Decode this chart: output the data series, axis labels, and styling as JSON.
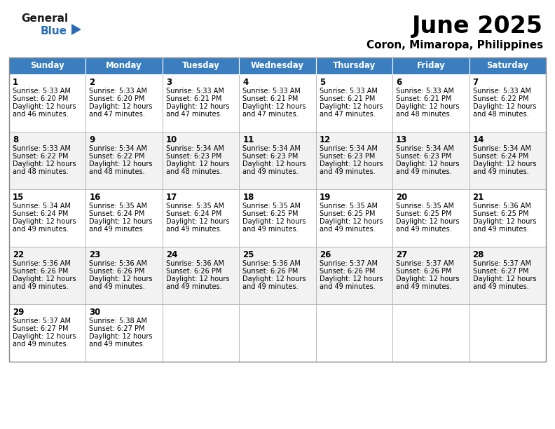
{
  "title": "June 2025",
  "subtitle": "Coron, Mimaropa, Philippines",
  "header_color": "#3a7ebf",
  "header_text_color": "#ffffff",
  "day_names": [
    "Sunday",
    "Monday",
    "Tuesday",
    "Wednesday",
    "Thursday",
    "Friday",
    "Saturday"
  ],
  "bg_color": "#ffffff",
  "grid_color": "#aaaaaa",
  "row_alt_color": "#eeeeee",
  "text_color": "#000000",
  "logo_general_color": "#1a1a1a",
  "logo_blue_color": "#2a6db5",
  "calendar_data": [
    [
      {
        "day": 1,
        "sunrise": "5:33 AM",
        "sunset": "6:20 PM",
        "daylight": "12 hours and 46 minutes."
      },
      {
        "day": 2,
        "sunrise": "5:33 AM",
        "sunset": "6:20 PM",
        "daylight": "12 hours and 47 minutes."
      },
      {
        "day": 3,
        "sunrise": "5:33 AM",
        "sunset": "6:21 PM",
        "daylight": "12 hours and 47 minutes."
      },
      {
        "day": 4,
        "sunrise": "5:33 AM",
        "sunset": "6:21 PM",
        "daylight": "12 hours and 47 minutes."
      },
      {
        "day": 5,
        "sunrise": "5:33 AM",
        "sunset": "6:21 PM",
        "daylight": "12 hours and 47 minutes."
      },
      {
        "day": 6,
        "sunrise": "5:33 AM",
        "sunset": "6:21 PM",
        "daylight": "12 hours and 48 minutes."
      },
      {
        "day": 7,
        "sunrise": "5:33 AM",
        "sunset": "6:22 PM",
        "daylight": "12 hours and 48 minutes."
      }
    ],
    [
      {
        "day": 8,
        "sunrise": "5:33 AM",
        "sunset": "6:22 PM",
        "daylight": "12 hours and 48 minutes."
      },
      {
        "day": 9,
        "sunrise": "5:34 AM",
        "sunset": "6:22 PM",
        "daylight": "12 hours and 48 minutes."
      },
      {
        "day": 10,
        "sunrise": "5:34 AM",
        "sunset": "6:23 PM",
        "daylight": "12 hours and 48 minutes."
      },
      {
        "day": 11,
        "sunrise": "5:34 AM",
        "sunset": "6:23 PM",
        "daylight": "12 hours and 49 minutes."
      },
      {
        "day": 12,
        "sunrise": "5:34 AM",
        "sunset": "6:23 PM",
        "daylight": "12 hours and 49 minutes."
      },
      {
        "day": 13,
        "sunrise": "5:34 AM",
        "sunset": "6:23 PM",
        "daylight": "12 hours and 49 minutes."
      },
      {
        "day": 14,
        "sunrise": "5:34 AM",
        "sunset": "6:24 PM",
        "daylight": "12 hours and 49 minutes."
      }
    ],
    [
      {
        "day": 15,
        "sunrise": "5:34 AM",
        "sunset": "6:24 PM",
        "daylight": "12 hours and 49 minutes."
      },
      {
        "day": 16,
        "sunrise": "5:35 AM",
        "sunset": "6:24 PM",
        "daylight": "12 hours and 49 minutes."
      },
      {
        "day": 17,
        "sunrise": "5:35 AM",
        "sunset": "6:24 PM",
        "daylight": "12 hours and 49 minutes."
      },
      {
        "day": 18,
        "sunrise": "5:35 AM",
        "sunset": "6:25 PM",
        "daylight": "12 hours and 49 minutes."
      },
      {
        "day": 19,
        "sunrise": "5:35 AM",
        "sunset": "6:25 PM",
        "daylight": "12 hours and 49 minutes."
      },
      {
        "day": 20,
        "sunrise": "5:35 AM",
        "sunset": "6:25 PM",
        "daylight": "12 hours and 49 minutes."
      },
      {
        "day": 21,
        "sunrise": "5:36 AM",
        "sunset": "6:25 PM",
        "daylight": "12 hours and 49 minutes."
      }
    ],
    [
      {
        "day": 22,
        "sunrise": "5:36 AM",
        "sunset": "6:26 PM",
        "daylight": "12 hours and 49 minutes."
      },
      {
        "day": 23,
        "sunrise": "5:36 AM",
        "sunset": "6:26 PM",
        "daylight": "12 hours and 49 minutes."
      },
      {
        "day": 24,
        "sunrise": "5:36 AM",
        "sunset": "6:26 PM",
        "daylight": "12 hours and 49 minutes."
      },
      {
        "day": 25,
        "sunrise": "5:36 AM",
        "sunset": "6:26 PM",
        "daylight": "12 hours and 49 minutes."
      },
      {
        "day": 26,
        "sunrise": "5:37 AM",
        "sunset": "6:26 PM",
        "daylight": "12 hours and 49 minutes."
      },
      {
        "day": 27,
        "sunrise": "5:37 AM",
        "sunset": "6:26 PM",
        "daylight": "12 hours and 49 minutes."
      },
      {
        "day": 28,
        "sunrise": "5:37 AM",
        "sunset": "6:27 PM",
        "daylight": "12 hours and 49 minutes."
      }
    ],
    [
      {
        "day": 29,
        "sunrise": "5:37 AM",
        "sunset": "6:27 PM",
        "daylight": "12 hours and 49 minutes."
      },
      {
        "day": 30,
        "sunrise": "5:38 AM",
        "sunset": "6:27 PM",
        "daylight": "12 hours and 49 minutes."
      },
      null,
      null,
      null,
      null,
      null
    ]
  ]
}
